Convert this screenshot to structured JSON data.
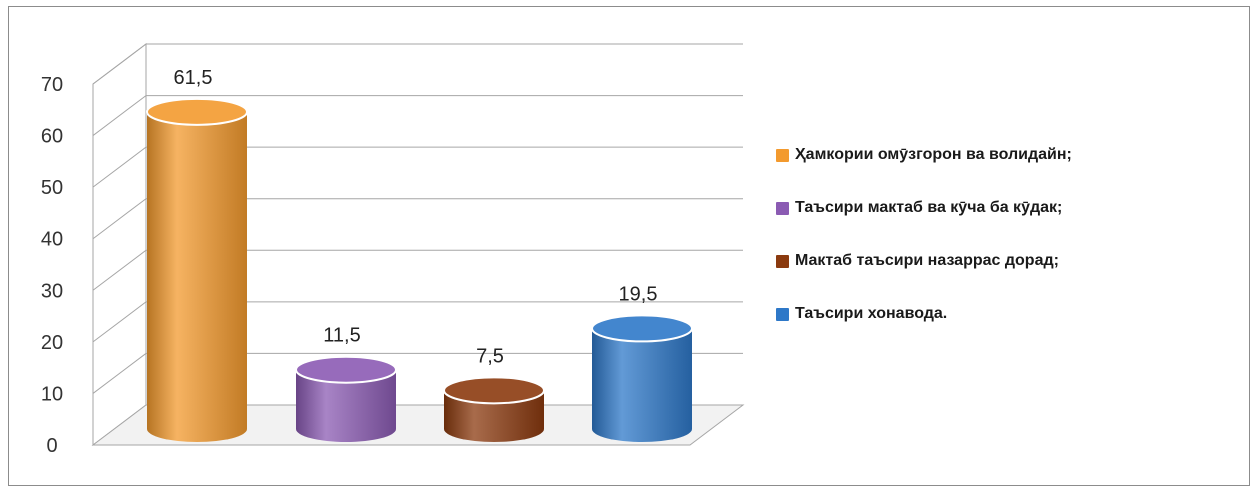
{
  "chart_data": {
    "type": "bar",
    "categories": [
      "Ҳамкории омӯзгорон ва волидайн;",
      "Таъсири мактаб ва кӯча ба кӯдак;",
      "Мактаб таъсири назаррас дорад;",
      "Таъсири хонавода."
    ],
    "values": [
      61.5,
      11.5,
      7.5,
      19.5
    ],
    "value_labels": [
      "61,5",
      "11,5",
      "7,5",
      "19,5"
    ],
    "y_ticks": [
      "0",
      "10",
      "20",
      "30",
      "40",
      "50",
      "60",
      "70"
    ],
    "ylim": [
      0,
      70
    ],
    "colors": [
      "#f39a2e",
      "#8b5bb3",
      "#8b3a0f",
      "#2e78c8"
    ],
    "grid": true,
    "legend_position": "right",
    "style": "3d-cylinder"
  }
}
